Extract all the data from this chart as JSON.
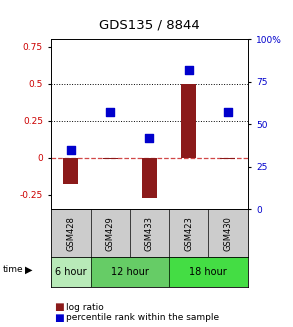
{
  "title": "GDS135 / 8844",
  "samples": [
    "GSM428",
    "GSM429",
    "GSM433",
    "GSM423",
    "GSM430"
  ],
  "log_ratio": [
    -0.18,
    -0.01,
    -0.27,
    0.5,
    -0.01
  ],
  "percentile_rank": [
    35,
    57,
    42,
    82,
    57
  ],
  "bar_color": "#8B1A1A",
  "dot_color": "#0000CC",
  "ylim_left": [
    -0.35,
    0.8
  ],
  "ylim_right": [
    0,
    100
  ],
  "yticks_left": [
    -0.25,
    0,
    0.25,
    0.5,
    0.75
  ],
  "ytick_labels_left": [
    "-0.25",
    "0",
    "0.25",
    "0.5",
    "0.75"
  ],
  "yticks_right": [
    0,
    25,
    50,
    75,
    100
  ],
  "ytick_labels_right": [
    "0",
    "25",
    "50",
    "75",
    "100%"
  ],
  "dotted_lines": [
    0.25,
    0.5
  ],
  "dashed_zero_color": "#CC3333",
  "bg_color": "#ffffff",
  "gsm_bg": "#cccccc",
  "time_groups": [
    {
      "label": "6 hour",
      "start": 0,
      "end": 1,
      "color": "#b8eab8"
    },
    {
      "label": "12 hour",
      "start": 1,
      "end": 3,
      "color": "#66cc66"
    },
    {
      "label": "18 hour",
      "start": 3,
      "end": 5,
      "color": "#44dd44"
    }
  ],
  "legend_bar_label": "log ratio",
  "legend_dot_label": "percentile rank within the sample",
  "time_label": "time"
}
